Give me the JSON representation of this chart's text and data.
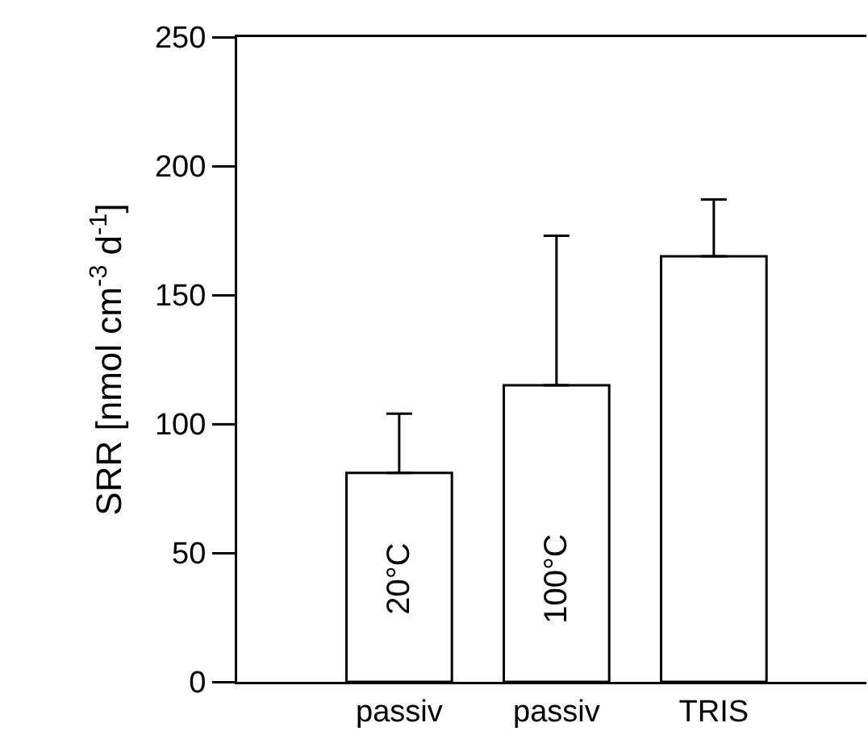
{
  "chart_data": {
    "type": "bar",
    "ylabel": "SRR [nmol cm$^{-3}$ d$^{-1}$]",
    "categories": [
      "passiv",
      "passiv",
      "TRIS"
    ],
    "values": [
      81,
      115,
      165
    ],
    "errors": [
      [
        81,
        104
      ],
      [
        115,
        173
      ],
      [
        165,
        187
      ]
    ],
    "annotations": [
      "20°C",
      "100°C"
    ],
    "color": "#ffffff",
    "ylim": [
      0,
      250
    ],
    "yticks": [
      0,
      50,
      100,
      150,
      200,
      250
    ],
    "grid": false,
    "legend": false
  }
}
